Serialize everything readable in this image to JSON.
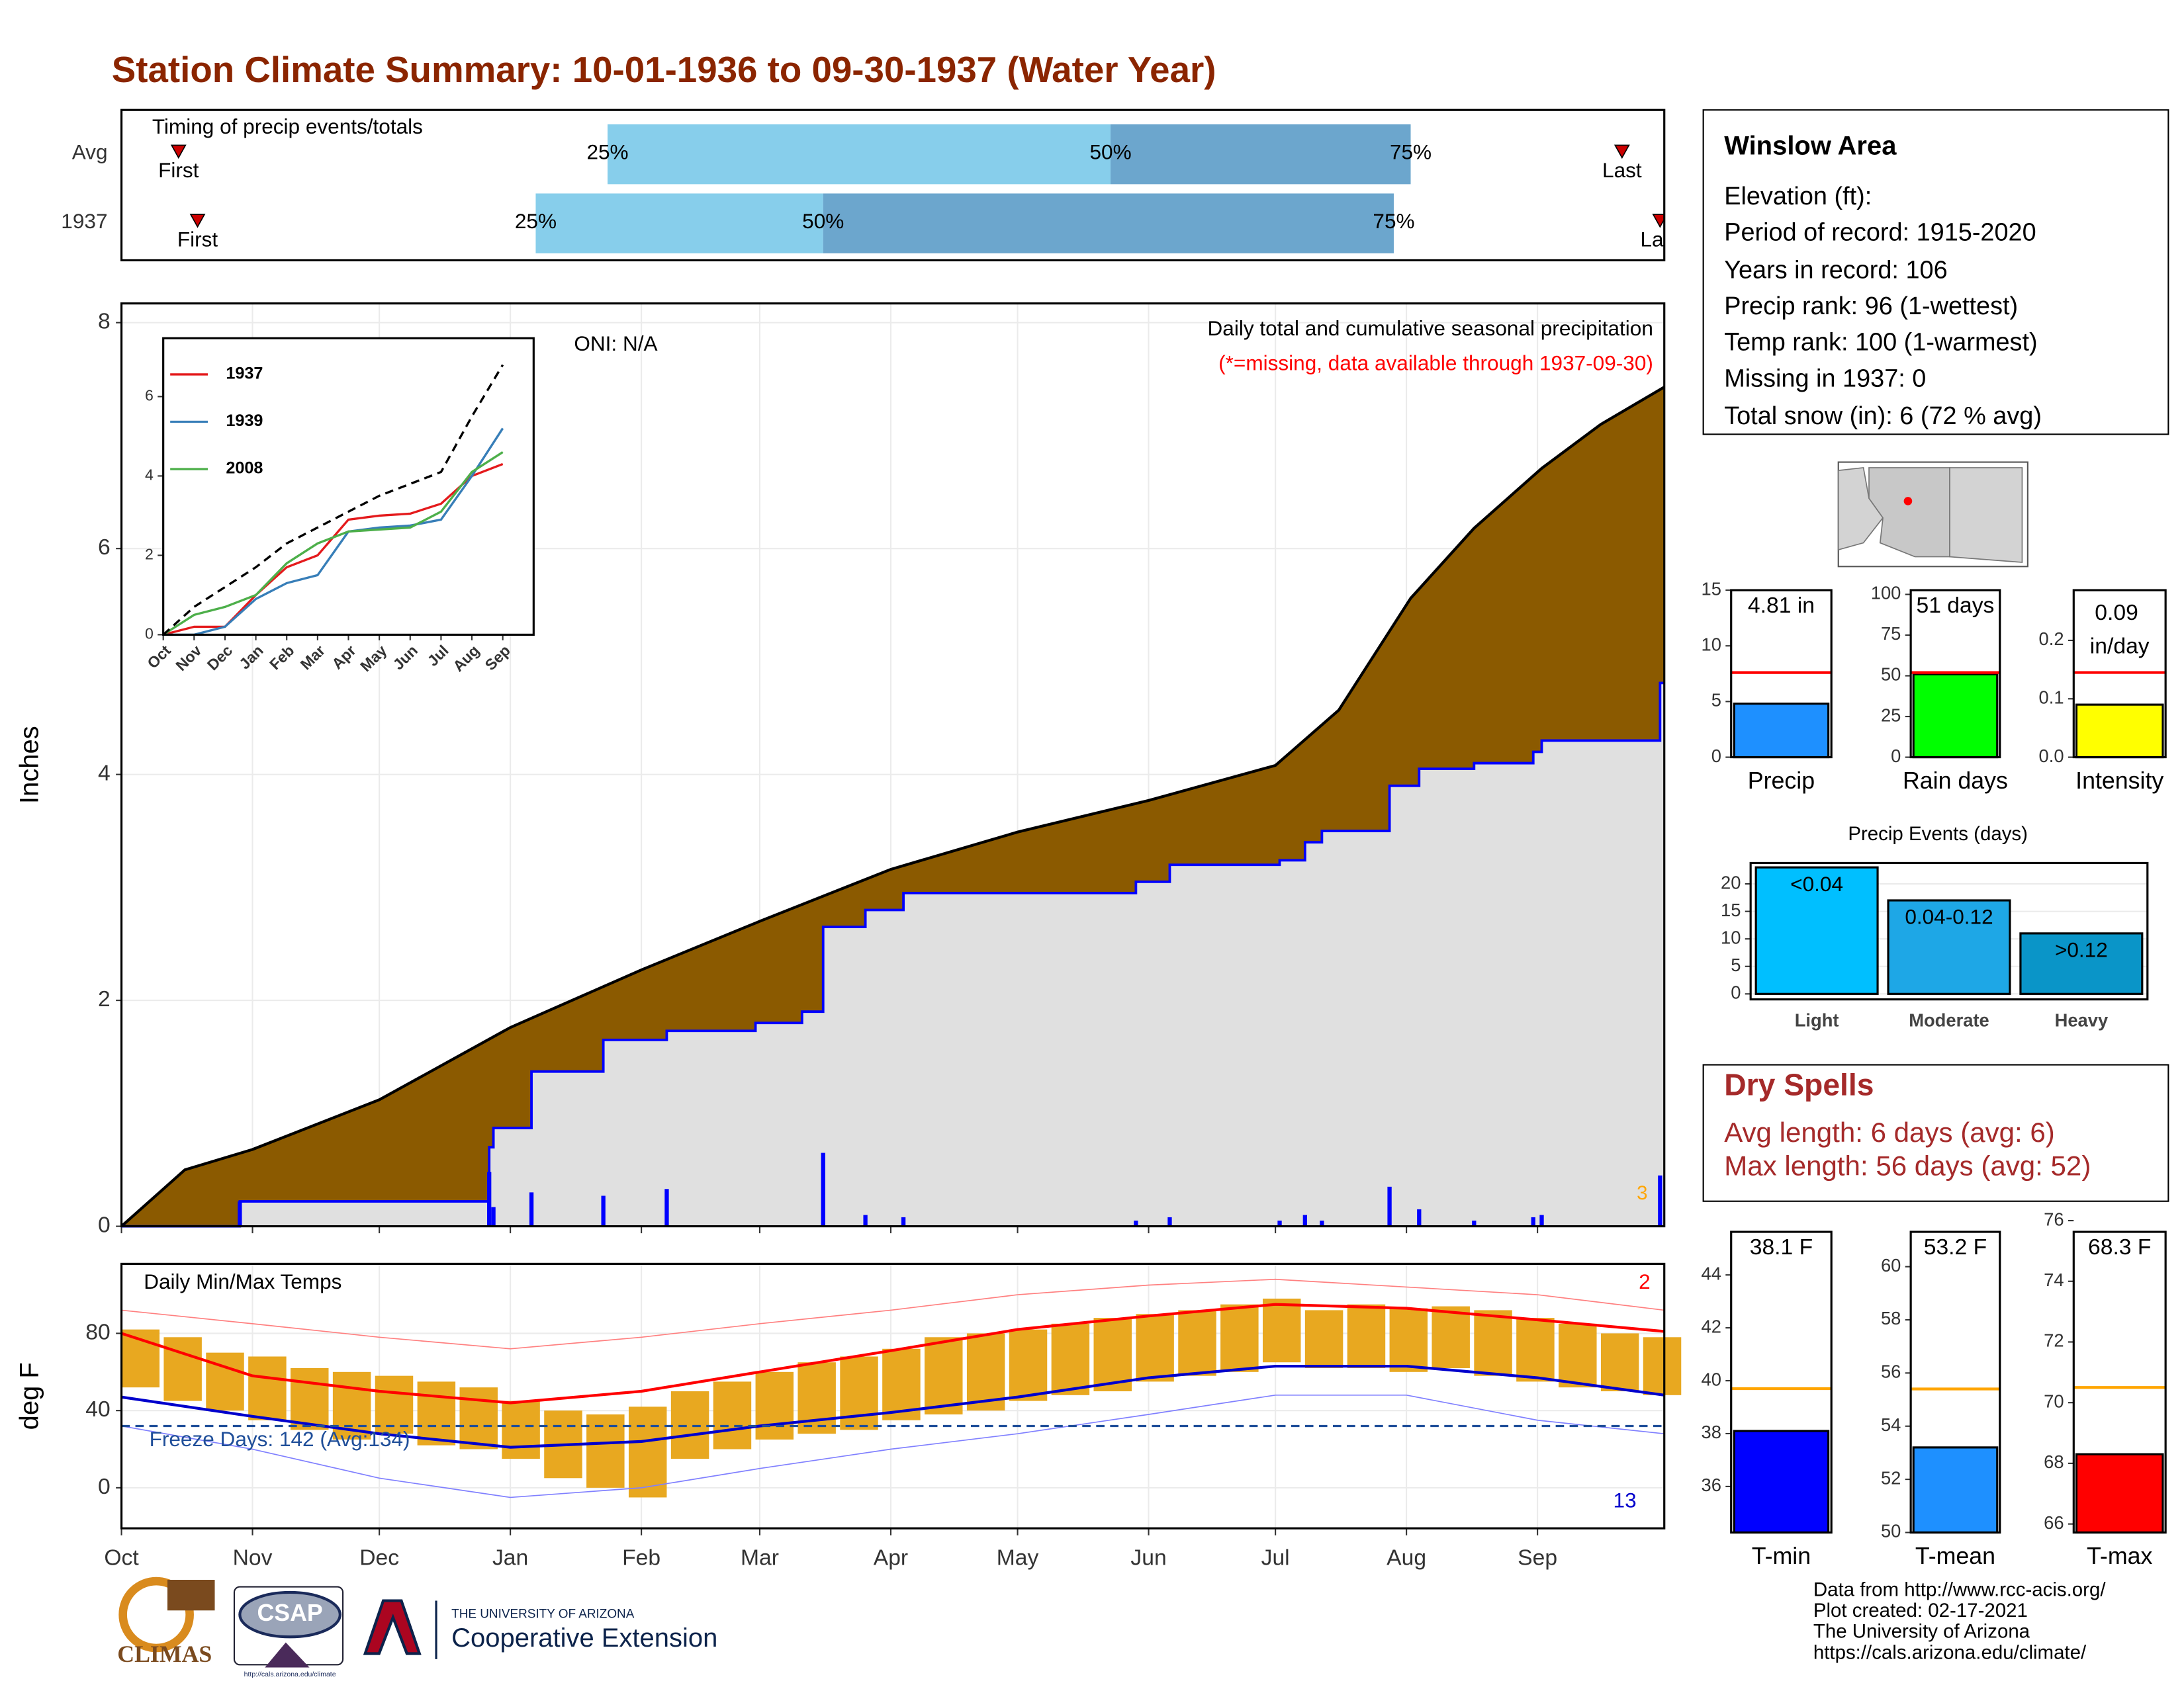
{
  "title": "Station Climate Summary: 10-01-1936 to 09-30-1937 (Water Year)",
  "chart_data": [
    {
      "type": "timing",
      "annotation": "Timing of precip events/totals",
      "xlim": [
        0,
        365
      ],
      "labels": [
        "First",
        "25%",
        "50%",
        "75%",
        "Last"
      ],
      "colors": [
        "#cc0000",
        "#87ceeb",
        "#6ca6cd"
      ],
      "rows": [
        {
          "name": "Avg",
          "values": [
            13.5,
            115,
            234,
            305,
            355
          ]
        },
        {
          "name": "1937",
          "values": [
            18,
            98,
            166,
            301,
            364
          ]
        }
      ]
    },
    {
      "type": "cumulative",
      "ylabel": "Inches",
      "annotations": [
        "ONI: N/A",
        "Daily total and cumulative seasonal precipitation",
        "(*=missing, data available through 1937-09-30)",
        "3"
      ],
      "xlim": [
        0,
        365
      ],
      "ylim": [
        0,
        8.17
      ],
      "yticks": [
        0,
        2,
        4,
        6,
        8
      ],
      "xticks": [
        0,
        31,
        61,
        92,
        123,
        151,
        182,
        212,
        243,
        273,
        304,
        335
      ],
      "grid": true,
      "series": [
        {
          "color": "#000000",
          "fill": "#8b5a00",
          "x": [
            0,
            15,
            31,
            61,
            92,
            123,
            151,
            182,
            212,
            243,
            273,
            288,
            305,
            320,
            336,
            350,
            365
          ],
          "values": [
            0,
            0.5,
            0.68,
            1.12,
            1.76,
            2.27,
            2.7,
            3.16,
            3.49,
            3.77,
            4.08,
            4.57,
            5.56,
            6.18,
            6.71,
            7.1,
            7.43
          ]
        },
        {
          "color": "#0000ff",
          "fill": "#e0e0e0",
          "x": [
            0,
            28,
            87,
            88,
            97,
            114,
            129,
            150,
            161,
            166,
            176,
            185,
            240,
            248,
            274,
            280,
            284,
            300,
            307,
            320,
            334,
            336,
            364
          ],
          "values": [
            0,
            0.22,
            0.7,
            0.87,
            1.37,
            1.65,
            1.73,
            1.8,
            1.9,
            2.65,
            2.8,
            2.95,
            3.05,
            3.2,
            3.24,
            3.4,
            3.5,
            3.9,
            4.05,
            4.1,
            4.2,
            4.3,
            4.81
          ]
        },
        {
          "color": "#0000ff",
          "x": [
            28,
            87,
            88,
            97,
            114,
            129,
            166,
            176,
            185,
            240,
            248,
            274,
            280,
            284,
            300,
            307,
            320,
            334,
            336,
            364
          ],
          "values": [
            0.22,
            0.48,
            0.17,
            0.3,
            0.27,
            0.33,
            0.65,
            0.1,
            0.08,
            0.05,
            0.08,
            0.05,
            0.1,
            0.05,
            0.35,
            0.15,
            0.05,
            0.08,
            0.1,
            0.45
          ]
        }
      ]
    },
    {
      "type": "line",
      "legend": "top-left",
      "xlim": [
        0,
        12
      ],
      "ylim": [
        0,
        7.47
      ],
      "yticks": [
        0,
        2,
        4,
        6
      ],
      "xticks": [
        {
          "value": 0,
          "label": "Oct"
        },
        {
          "value": 1,
          "label": "Nov"
        },
        {
          "value": 2,
          "label": "Dec"
        },
        {
          "value": 3,
          "label": "Jan"
        },
        {
          "value": 4,
          "label": "Feb"
        },
        {
          "value": 5,
          "label": "Mar"
        },
        {
          "value": 6,
          "label": "Apr"
        },
        {
          "value": 7,
          "label": "May"
        },
        {
          "value": 8,
          "label": "Jun"
        },
        {
          "value": 9,
          "label": "Jul"
        },
        {
          "value": 10,
          "label": "Aug"
        },
        {
          "value": 11,
          "label": "Sep"
        }
      ],
      "x": [
        0,
        1,
        2,
        3,
        4,
        5,
        6,
        7,
        8,
        9,
        10,
        11
      ],
      "series": [
        {
          "name": "1937",
          "color": "#e41a1c",
          "values": [
            0,
            0.2,
            0.2,
            1.0,
            1.7,
            2.0,
            2.9,
            3.0,
            3.05,
            3.3,
            4.0,
            4.3
          ]
        },
        {
          "name": "1939",
          "color": "#377eb8",
          "values": [
            0,
            0,
            0.2,
            0.9,
            1.3,
            1.5,
            2.6,
            2.7,
            2.75,
            2.9,
            4.0,
            5.2
          ]
        },
        {
          "name": "2008",
          "color": "#4daf4a",
          "values": [
            0,
            0.5,
            0.7,
            1.0,
            1.8,
            2.3,
            2.6,
            2.65,
            2.7,
            3.1,
            4.1,
            4.6
          ]
        },
        {
          "color": "#000000",
          "dash": true,
          "values": [
            0,
            0.7,
            1.2,
            1.7,
            2.3,
            2.7,
            3.1,
            3.5,
            3.8,
            4.1,
            5.5,
            6.8
          ]
        }
      ]
    },
    {
      "type": "temperature",
      "ylabel": "deg F",
      "annotations": [
        "Daily Min/Max Temps",
        "Freeze Days: 142 (Avg:134)",
        "2",
        "13"
      ],
      "xlim": [
        0,
        365
      ],
      "ylim": [
        -21,
        116
      ],
      "yticks": [
        0,
        40,
        80
      ],
      "freeze": 32,
      "grid": true,
      "xticks": [
        {
          "value": 0,
          "label": "Oct"
        },
        {
          "value": 31,
          "label": "Nov"
        },
        {
          "value": 61,
          "label": "Dec"
        },
        {
          "value": 92,
          "label": "Jan"
        },
        {
          "value": 123,
          "label": "Feb"
        },
        {
          "value": 151,
          "label": "Mar"
        },
        {
          "value": 182,
          "label": "Apr"
        },
        {
          "value": 212,
          "label": "May"
        },
        {
          "value": 243,
          "label": "Jun"
        },
        {
          "value": 273,
          "label": "Jul"
        },
        {
          "value": 304,
          "label": "Aug"
        },
        {
          "value": 335,
          "label": "Sep"
        }
      ],
      "daily": {
        "color": "#e8a820",
        "x": [
          0,
          10,
          20,
          30,
          40,
          50,
          60,
          70,
          80,
          90,
          100,
          110,
          120,
          130,
          140,
          150,
          160,
          170,
          180,
          190,
          200,
          210,
          220,
          230,
          240,
          250,
          260,
          270,
          280,
          290,
          300,
          310,
          320,
          330,
          340,
          350,
          360
        ],
        "low": [
          52,
          45,
          40,
          35,
          30,
          25,
          28,
          22,
          20,
          15,
          5,
          0,
          -5,
          15,
          20,
          25,
          28,
          30,
          35,
          38,
          40,
          45,
          48,
          50,
          55,
          58,
          60,
          65,
          62,
          62,
          60,
          62,
          58,
          55,
          52,
          50,
          48
        ],
        "high": [
          82,
          78,
          70,
          68,
          62,
          60,
          58,
          55,
          52,
          45,
          40,
          38,
          42,
          50,
          55,
          60,
          65,
          68,
          72,
          78,
          80,
          82,
          85,
          88,
          90,
          92,
          95,
          98,
          92,
          95,
          93,
          94,
          92,
          88,
          85,
          80,
          78
        ]
      },
      "series": [
        {
          "color": "#ff0000",
          "width": 2,
          "x": [
            0,
            31,
            61,
            92,
            123,
            151,
            182,
            212,
            243,
            273,
            304,
            335,
            365
          ],
          "values": [
            80,
            58,
            50,
            44,
            50,
            60,
            71,
            82,
            89,
            95,
            93,
            87,
            81
          ]
        },
        {
          "color": "#0000cc",
          "width": 2,
          "x": [
            0,
            31,
            61,
            92,
            123,
            151,
            182,
            212,
            243,
            273,
            304,
            335,
            365
          ],
          "values": [
            47,
            37,
            28,
            21,
            24,
            32,
            39,
            47,
            57,
            63,
            63,
            57,
            48
          ]
        },
        {
          "color": "#ff8080",
          "width": 0.8,
          "x": [
            0,
            31,
            61,
            92,
            123,
            151,
            182,
            212,
            243,
            273,
            304,
            335,
            365
          ],
          "values": [
            92,
            85,
            78,
            72,
            78,
            85,
            92,
            100,
            105,
            108,
            104,
            100,
            92
          ]
        },
        {
          "color": "#8080ff",
          "width": 0.8,
          "x": [
            0,
            31,
            61,
            92,
            123,
            151,
            182,
            212,
            243,
            273,
            304,
            335,
            365
          ],
          "values": [
            32,
            20,
            5,
            -5,
            0,
            10,
            20,
            28,
            38,
            48,
            48,
            35,
            28
          ]
        }
      ]
    },
    {
      "type": "bar",
      "categories": [
        "Precip"
      ],
      "values": [
        4.81
      ],
      "value_labels": [
        "4.81 in"
      ],
      "avg": [
        7.6
      ],
      "color": "#1e90ff",
      "avg_color": "#ff0000",
      "ylim": [
        0,
        15
      ],
      "yticks": [
        0,
        5,
        10,
        15
      ]
    },
    {
      "type": "bar",
      "categories": [
        "Rain days"
      ],
      "values": [
        51
      ],
      "value_labels": [
        "51 days"
      ],
      "avg": [
        52
      ],
      "color": "#00ff00",
      "avg_color": "#ff0000",
      "ylim": [
        0,
        102.6
      ],
      "yticks": [
        0,
        25,
        50,
        75,
        100
      ]
    },
    {
      "type": "bar",
      "categories": [
        "Intensity"
      ],
      "values": [
        0.09
      ],
      "value_labels": [
        "0.09 in/day"
      ],
      "avg": [
        0.145
      ],
      "color": "#ffff00",
      "avg_color": "#ff0000",
      "ylim": [
        0,
        0.286
      ],
      "yticks": [
        {
          "value": 0,
          "label": "0.0"
        },
        0.1,
        0.2
      ]
    },
    {
      "type": "bar",
      "title": "Precip Events (days)",
      "categories": [
        "Light",
        "Moderate",
        "Heavy"
      ],
      "classes": [
        "<0.04",
        "0.04-0.12",
        ">0.12"
      ],
      "values": [
        23,
        17,
        11
      ],
      "colors": [
        "#00bfff",
        "#1ea7e6",
        "#0a95c8"
      ],
      "ylim": [
        -1,
        23.8
      ],
      "yticks": [
        0,
        5,
        10,
        15,
        20
      ],
      "grid": true
    },
    {
      "type": "bar",
      "categories": [
        "T-min"
      ],
      "values": [
        38.1
      ],
      "value_labels": [
        "38.1 F"
      ],
      "avg": [
        39.7
      ],
      "color": "#0000ff",
      "avg_color": "#ffa500",
      "ylim": [
        34.26,
        45.63
      ],
      "yticks": [
        36,
        38,
        40,
        42,
        44
      ]
    },
    {
      "type": "bar",
      "categories": [
        "T-mean"
      ],
      "values": [
        53.2
      ],
      "value_labels": [
        "53.2 F"
      ],
      "avg": [
        55.4
      ],
      "color": "#1e90ff",
      "avg_color": "#ffa500",
      "ylim": [
        50,
        61.31
      ],
      "yticks": [
        50,
        52,
        54,
        56,
        58,
        60
      ]
    },
    {
      "type": "bar",
      "categories": [
        "T-max"
      ],
      "values": [
        68.3
      ],
      "value_labels": [
        "68.3 F"
      ],
      "avg": [
        70.5
      ],
      "color": "#ff0000",
      "avg_color": "#ffa500",
      "ylim": [
        65.72,
        75.63
      ],
      "yticks": [
        66,
        68,
        70,
        72,
        74,
        76
      ]
    }
  ],
  "station": {
    "name": "Winslow Area",
    "lines": [
      "Elevation (ft):",
      "Period of record: 1915-2020",
      "Years in record: 106",
      "Precip rank: 96 (1-wettest)",
      "Temp rank: 100 (1-warmest)",
      "Missing in 1937: 0",
      "Total snow (in): 6 (72 % avg)"
    ]
  },
  "dry_spells": {
    "title": "Dry Spells",
    "lines": [
      "Avg length: 6 days (avg: 6)",
      "Max length: 56 days (avg: 52)"
    ]
  },
  "credits": [
    "Data from http://www.rcc-acis.org/",
    "Plot created: 02-17-2021",
    "The University of Arizona",
    "https://cals.arizona.edu/climate/"
  ],
  "logos": {
    "climas": "CLIMAS",
    "csap": "CSAP",
    "csap_url": "http://cals.arizona.edu/climate",
    "university": "THE UNIVERSITY OF ARIZONA",
    "extension": "Cooperative Extension"
  }
}
